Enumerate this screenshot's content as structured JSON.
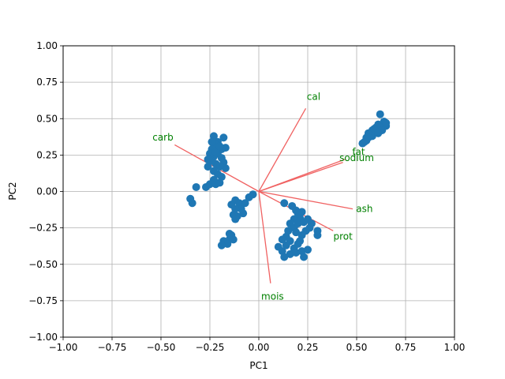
{
  "chart_data": {
    "type": "scatter",
    "title": "",
    "xlabel": "PC1",
    "ylabel": "PC2",
    "xlim": [
      -1.0,
      1.0
    ],
    "ylim": [
      -1.0,
      1.0
    ],
    "grid": true,
    "x_ticks": [
      "−1.00",
      "−0.75",
      "−0.50",
      "−0.25",
      "0.00",
      "0.25",
      "0.50",
      "0.75",
      "1.00"
    ],
    "y_ticks": [
      "−1.00",
      "−0.75",
      "−0.50",
      "−0.25",
      "0.00",
      "0.25",
      "0.50",
      "0.75",
      "1.00"
    ],
    "point_color": "#1f77b4",
    "arrow_color": "#f06262",
    "label_color": "#008000",
    "loadings": [
      {
        "name": "cal",
        "x": 0.24,
        "y": 0.57,
        "label_x": 0.28,
        "label_y": 0.65
      },
      {
        "name": "carb",
        "x": -0.43,
        "y": 0.32,
        "label_x": -0.49,
        "label_y": 0.37
      },
      {
        "name": "fat",
        "x": 0.44,
        "y": 0.22,
        "label_x": 0.51,
        "label_y": 0.27
      },
      {
        "name": "sodium",
        "x": 0.43,
        "y": 0.2,
        "label_x": 0.5,
        "label_y": 0.23
      },
      {
        "name": "ash",
        "x": 0.48,
        "y": -0.12,
        "label_x": 0.54,
        "label_y": -0.12
      },
      {
        "name": "prot",
        "x": 0.38,
        "y": -0.27,
        "label_x": 0.43,
        "label_y": -0.31
      },
      {
        "name": "mois",
        "x": 0.06,
        "y": -0.63,
        "label_x": 0.07,
        "label_y": -0.72
      }
    ],
    "points": [
      {
        "x": 0.62,
        "y": 0.53
      },
      {
        "x": 0.64,
        "y": 0.48
      },
      {
        "x": 0.65,
        "y": 0.45
      },
      {
        "x": 0.61,
        "y": 0.46
      },
      {
        "x": 0.6,
        "y": 0.44
      },
      {
        "x": 0.58,
        "y": 0.42
      },
      {
        "x": 0.56,
        "y": 0.4
      },
      {
        "x": 0.55,
        "y": 0.37
      },
      {
        "x": 0.53,
        "y": 0.33
      },
      {
        "x": 0.55,
        "y": 0.35
      },
      {
        "x": 0.58,
        "y": 0.38
      },
      {
        "x": 0.6,
        "y": 0.41
      },
      {
        "x": 0.62,
        "y": 0.44
      },
      {
        "x": 0.63,
        "y": 0.42
      },
      {
        "x": 0.57,
        "y": 0.39
      },
      {
        "x": 0.59,
        "y": 0.43
      },
      {
        "x": 0.61,
        "y": 0.4
      },
      {
        "x": 0.54,
        "y": 0.34
      },
      {
        "x": 0.65,
        "y": 0.47
      },
      {
        "x": 0.56,
        "y": 0.37
      },
      {
        "x": -0.23,
        "y": 0.38
      },
      {
        "x": -0.18,
        "y": 0.37
      },
      {
        "x": -0.21,
        "y": 0.34
      },
      {
        "x": -0.17,
        "y": 0.3
      },
      {
        "x": -0.19,
        "y": 0.29
      },
      {
        "x": -0.22,
        "y": 0.32
      },
      {
        "x": -0.24,
        "y": 0.29
      },
      {
        "x": -0.25,
        "y": 0.26
      },
      {
        "x": -0.26,
        "y": 0.22
      },
      {
        "x": -0.23,
        "y": 0.24
      },
      {
        "x": -0.21,
        "y": 0.26
      },
      {
        "x": -0.19,
        "y": 0.23
      },
      {
        "x": -0.18,
        "y": 0.2
      },
      {
        "x": -0.17,
        "y": 0.16
      },
      {
        "x": -0.2,
        "y": 0.17
      },
      {
        "x": -0.22,
        "y": 0.19
      },
      {
        "x": -0.24,
        "y": 0.21
      },
      {
        "x": -0.26,
        "y": 0.17
      },
      {
        "x": -0.23,
        "y": 0.14
      },
      {
        "x": -0.21,
        "y": 0.12
      },
      {
        "x": -0.19,
        "y": 0.1
      },
      {
        "x": -0.23,
        "y": 0.08
      },
      {
        "x": -0.27,
        "y": 0.03
      },
      {
        "x": -0.25,
        "y": 0.05
      },
      {
        "x": -0.22,
        "y": 0.05
      },
      {
        "x": -0.2,
        "y": 0.06
      },
      {
        "x": -0.32,
        "y": 0.03
      },
      {
        "x": -0.35,
        "y": -0.05
      },
      {
        "x": -0.34,
        "y": -0.08
      },
      {
        "x": -0.22,
        "y": 0.27
      },
      {
        "x": -0.2,
        "y": 0.31
      },
      {
        "x": -0.24,
        "y": 0.34
      },
      {
        "x": 0.13,
        "y": -0.08
      },
      {
        "x": 0.17,
        "y": -0.1
      },
      {
        "x": 0.19,
        "y": -0.13
      },
      {
        "x": 0.22,
        "y": -0.14
      },
      {
        "x": 0.21,
        "y": -0.18
      },
      {
        "x": 0.18,
        "y": -0.19
      },
      {
        "x": 0.16,
        "y": -0.22
      },
      {
        "x": 0.18,
        "y": -0.25
      },
      {
        "x": 0.2,
        "y": -0.22
      },
      {
        "x": 0.23,
        "y": -0.21
      },
      {
        "x": 0.25,
        "y": -0.19
      },
      {
        "x": 0.27,
        "y": -0.22
      },
      {
        "x": 0.26,
        "y": -0.25
      },
      {
        "x": 0.3,
        "y": -0.27
      },
      {
        "x": 0.3,
        "y": -0.3
      },
      {
        "x": 0.24,
        "y": -0.27
      },
      {
        "x": 0.22,
        "y": -0.3
      },
      {
        "x": 0.19,
        "y": -0.28
      },
      {
        "x": 0.15,
        "y": -0.27
      },
      {
        "x": 0.14,
        "y": -0.31
      },
      {
        "x": 0.12,
        "y": -0.33
      },
      {
        "x": 0.16,
        "y": -0.34
      },
      {
        "x": 0.2,
        "y": -0.36
      },
      {
        "x": 0.18,
        "y": -0.39
      },
      {
        "x": 0.14,
        "y": -0.37
      },
      {
        "x": 0.1,
        "y": -0.38
      },
      {
        "x": 0.12,
        "y": -0.41
      },
      {
        "x": 0.13,
        "y": -0.45
      },
      {
        "x": 0.16,
        "y": -0.43
      },
      {
        "x": 0.19,
        "y": -0.42
      },
      {
        "x": 0.22,
        "y": -0.41
      },
      {
        "x": 0.25,
        "y": -0.4
      },
      {
        "x": 0.23,
        "y": -0.45
      },
      {
        "x": 0.21,
        "y": -0.34
      },
      {
        "x": 0.2,
        "y": -0.15
      },
      {
        "x": -0.12,
        "y": -0.06
      },
      {
        "x": -0.1,
        "y": -0.08
      },
      {
        "x": -0.09,
        "y": -0.12
      },
      {
        "x": -0.12,
        "y": -0.12
      },
      {
        "x": -0.13,
        "y": -0.16
      },
      {
        "x": -0.11,
        "y": -0.17
      },
      {
        "x": -0.12,
        "y": -0.19
      },
      {
        "x": -0.07,
        "y": -0.08
      },
      {
        "x": -0.05,
        "y": -0.04
      },
      {
        "x": -0.03,
        "y": -0.02
      },
      {
        "x": -0.14,
        "y": -0.09
      },
      {
        "x": -0.08,
        "y": -0.15
      },
      {
        "x": -0.14,
        "y": -0.3
      },
      {
        "x": -0.15,
        "y": -0.33
      },
      {
        "x": -0.18,
        "y": -0.34
      },
      {
        "x": -0.16,
        "y": -0.36
      },
      {
        "x": -0.13,
        "y": -0.33
      },
      {
        "x": -0.15,
        "y": -0.29
      },
      {
        "x": -0.19,
        "y": -0.37
      }
    ]
  }
}
